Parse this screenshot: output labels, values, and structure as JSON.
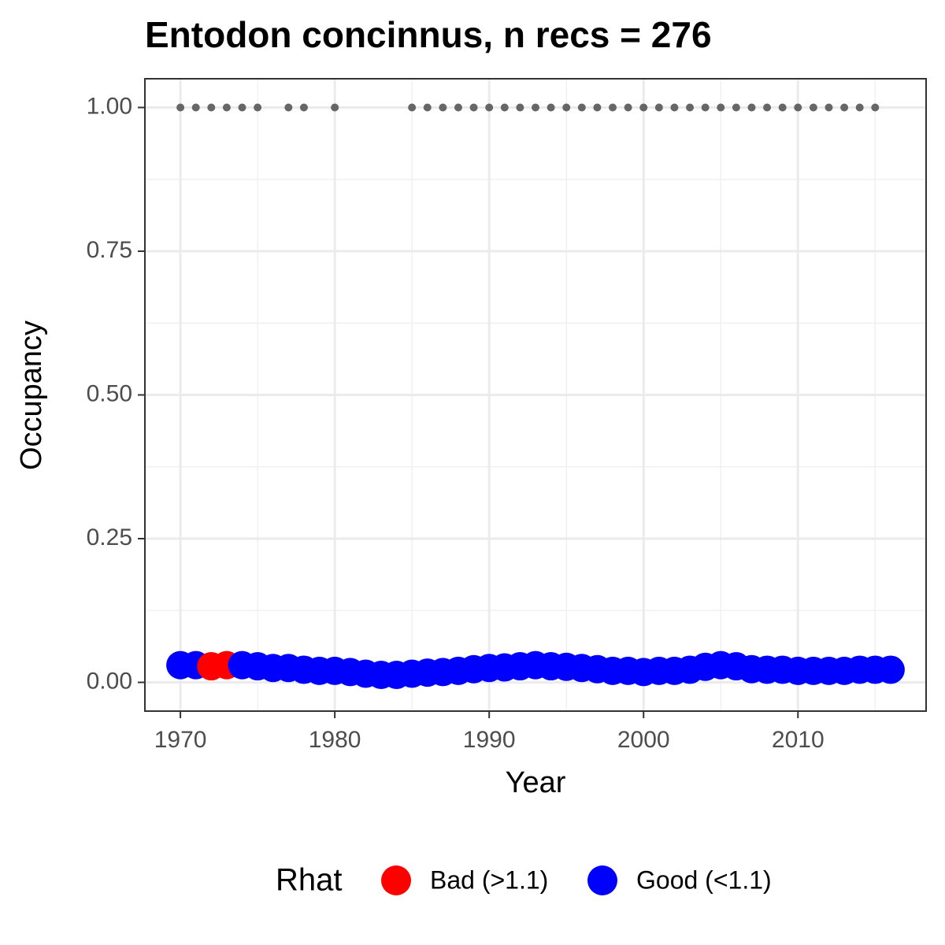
{
  "chart_data": {
    "type": "scatter",
    "title": "Entodon concinnus, n recs = 276",
    "x_label": "Year",
    "y_label": "Occupancy",
    "legend_title": "Rhat",
    "legend_position": "bottom",
    "xlim": [
      1967.7,
      2018.3
    ],
    "xticks": [
      1970,
      1980,
      1990,
      2000,
      2010
    ],
    "ylim": [
      -0.05,
      1.05
    ],
    "yticks": [
      {
        "value": 0,
        "label": "0.00"
      },
      0.25,
      {
        "value": 0.5,
        "label": "0.50"
      },
      0.75,
      {
        "value": 1,
        "label": "1.00"
      }
    ],
    "grid": true,
    "records": {
      "color": "#666666",
      "x": [
        1970,
        1971,
        1972,
        1973,
        1974,
        1975,
        1977,
        1978,
        1980,
        1985,
        1986,
        1987,
        1988,
        1989,
        1990,
        1991,
        1992,
        1993,
        1994,
        1995,
        1996,
        1997,
        1998,
        1999,
        2000,
        2001,
        2002,
        2003,
        2004,
        2005,
        2006,
        2007,
        2008,
        2009,
        2010,
        2011,
        2012,
        2013,
        2014,
        2015
      ],
      "values": [
        1,
        1,
        1,
        1,
        1,
        1,
        1,
        1,
        1,
        1,
        1,
        1,
        1,
        1,
        1,
        1,
        1,
        1,
        1,
        1,
        1,
        1,
        1,
        1,
        1,
        1,
        1,
        1,
        1,
        1,
        1,
        1,
        1,
        1,
        1,
        1,
        1,
        1,
        1,
        1
      ]
    },
    "series": [
      {
        "name": "Bad (>1.1)",
        "color": "#ff0000",
        "x": [
          1972,
          1973
        ],
        "values": [
          0.028,
          0.03
        ]
      },
      {
        "name": "Good (<1.1)",
        "color": "#0000ff",
        "x": [
          1970,
          1971,
          1974,
          1975,
          1976,
          1977,
          1978,
          1979,
          1980,
          1981,
          1982,
          1983,
          1984,
          1985,
          1986,
          1987,
          1988,
          1989,
          1990,
          1991,
          1992,
          1993,
          1994,
          1995,
          1996,
          1997,
          1998,
          1999,
          2000,
          2001,
          2002,
          2003,
          2004,
          2005,
          2006,
          2007,
          2008,
          2009,
          2010,
          2011,
          2012,
          2013,
          2014,
          2015,
          2016
        ],
        "values": [
          0.03,
          0.03,
          0.03,
          0.028,
          0.025,
          0.025,
          0.022,
          0.02,
          0.02,
          0.018,
          0.015,
          0.013,
          0.013,
          0.015,
          0.017,
          0.018,
          0.02,
          0.023,
          0.025,
          0.026,
          0.028,
          0.03,
          0.028,
          0.027,
          0.025,
          0.023,
          0.02,
          0.02,
          0.018,
          0.02,
          0.02,
          0.022,
          0.027,
          0.03,
          0.028,
          0.023,
          0.022,
          0.022,
          0.02,
          0.02,
          0.02,
          0.02,
          0.022,
          0.022,
          0.022
        ]
      }
    ]
  }
}
